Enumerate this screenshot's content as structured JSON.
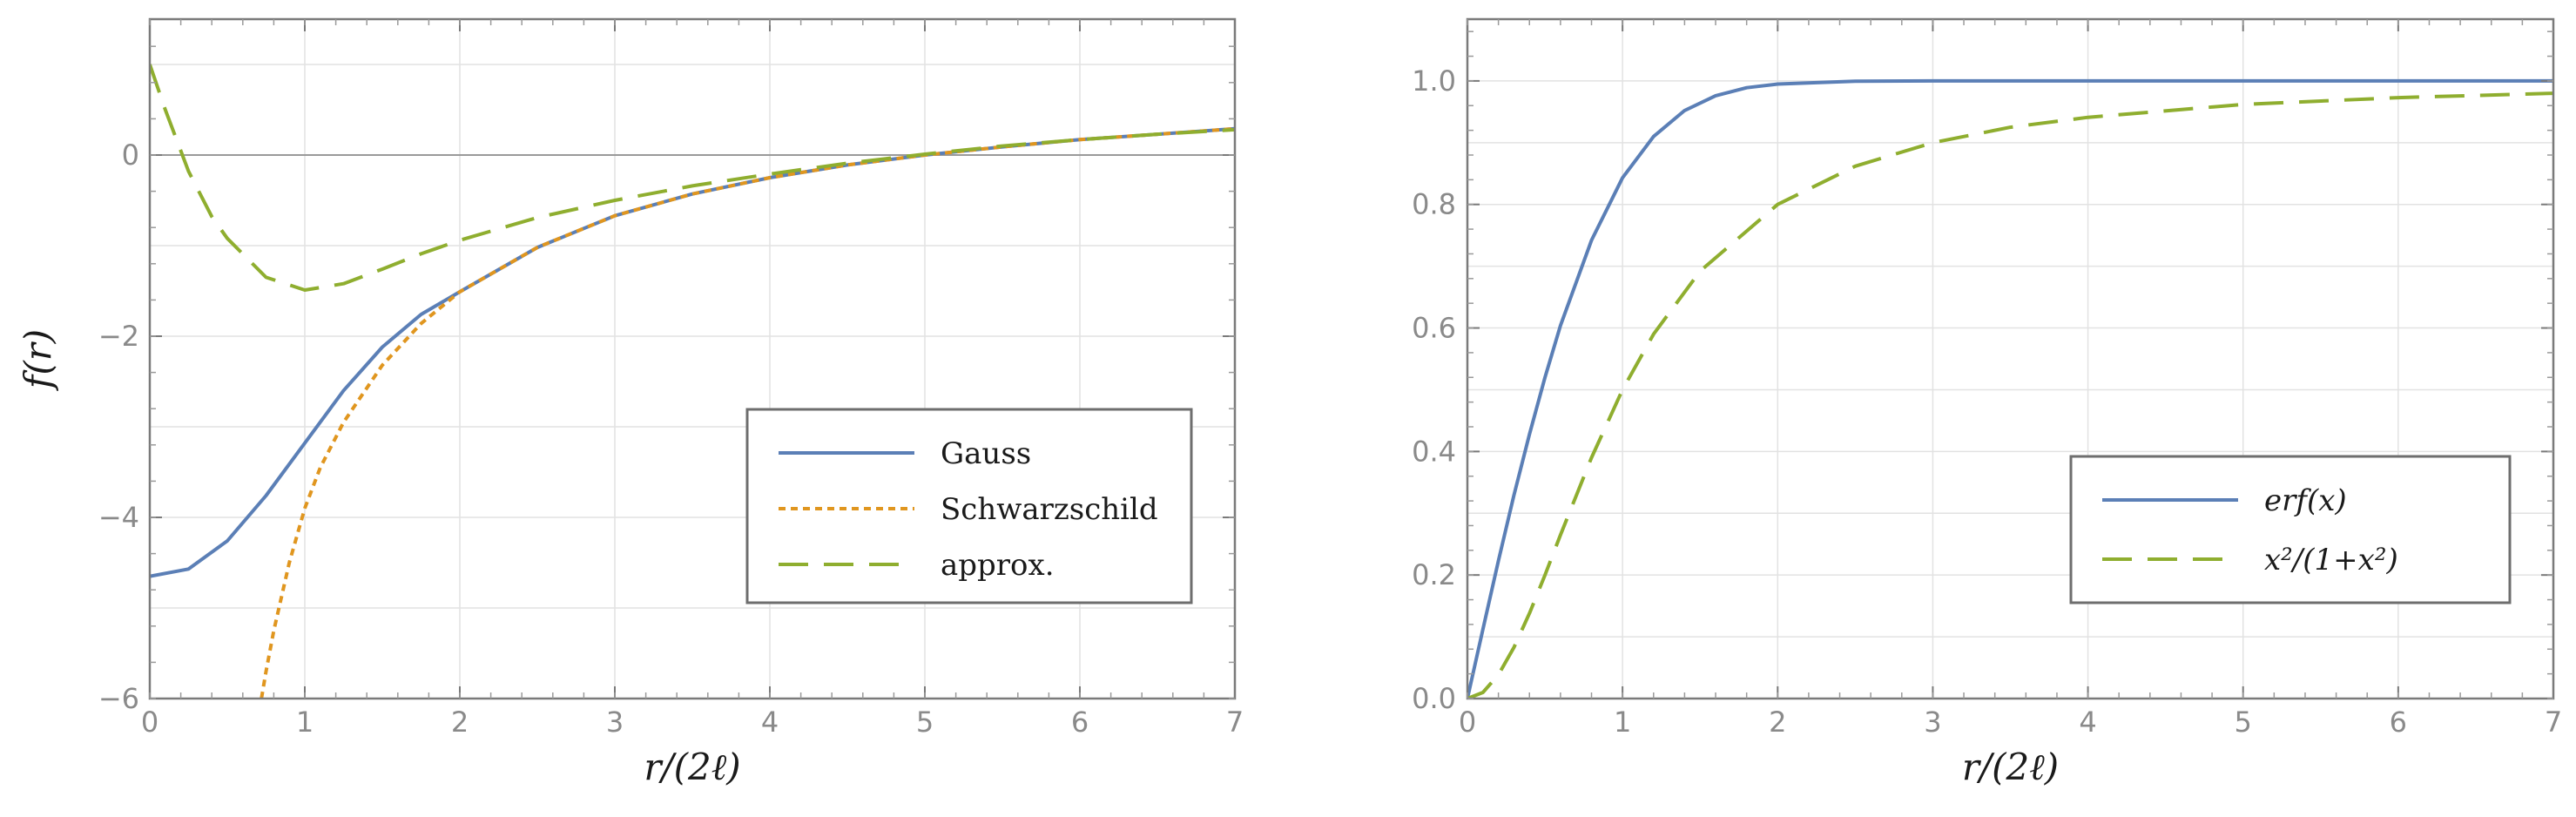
{
  "chart_data": [
    {
      "type": "line",
      "xlabel": "r/(2ℓ)",
      "ylabel": "f(r)",
      "xlim": [
        0,
        7
      ],
      "ylim": [
        -6,
        1.5
      ],
      "xticks": [
        0,
        1,
        2,
        3,
        4,
        5,
        6,
        7
      ],
      "xtick_labels": [
        "0",
        "1",
        "2",
        "3",
        "4",
        "5",
        "6",
        "7"
      ],
      "yticks": [
        -6,
        -4,
        -2,
        0
      ],
      "ytick_labels": [
        "−6",
        "−4",
        "−2",
        "0"
      ],
      "grid": true,
      "zero_line": true,
      "legend_position": "bottom-right",
      "series": [
        {
          "name": "Gauss",
          "color": "#5b7fb6",
          "style": "solid",
          "x": [
            0,
            0.25,
            0.5,
            0.75,
            1,
            1.25,
            1.5,
            1.75,
            2,
            2.5,
            3,
            3.5,
            4,
            4.5,
            5,
            5.5,
            6,
            6.5,
            7
          ],
          "y": [
            -4.65,
            -4.57,
            -4.26,
            -3.76,
            -3.18,
            -2.6,
            -2.12,
            -1.76,
            -1.51,
            -1.02,
            -0.67,
            -0.43,
            -0.25,
            -0.11,
            0.0,
            0.09,
            0.17,
            0.23,
            0.29
          ]
        },
        {
          "name": "Schwarzschild",
          "color": "#e0961f",
          "style": "dotted",
          "x": [
            0.72,
            0.75,
            0.8,
            0.9,
            1,
            1.1,
            1.25,
            1.5,
            1.75,
            2,
            2.5,
            3,
            3.5,
            4,
            4.5,
            5,
            5.5,
            6,
            6.5,
            7
          ],
          "y": [
            -6.0,
            -5.7,
            -5.25,
            -4.5,
            -3.9,
            -3.45,
            -2.95,
            -2.32,
            -1.86,
            -1.51,
            -1.02,
            -0.67,
            -0.43,
            -0.25,
            -0.11,
            0.0,
            0.09,
            0.17,
            0.23,
            0.29
          ]
        },
        {
          "name": "approx.",
          "color": "#8fae2f",
          "style": "dashed",
          "x": [
            0,
            0.1,
            0.25,
            0.4,
            0.5,
            0.75,
            1,
            1.25,
            1.5,
            1.75,
            2,
            2.5,
            3,
            3.5,
            4,
            4.5,
            5,
            5.5,
            6,
            6.5,
            7
          ],
          "y": [
            1.0,
            0.5,
            -0.18,
            -0.68,
            -0.92,
            -1.35,
            -1.49,
            -1.42,
            -1.26,
            -1.09,
            -0.94,
            -0.69,
            -0.5,
            -0.34,
            -0.21,
            -0.09,
            0.01,
            0.1,
            0.17,
            0.23,
            0.28
          ]
        }
      ]
    },
    {
      "type": "line",
      "xlabel": "r/(2ℓ)",
      "ylabel": "",
      "xlim": [
        0,
        7
      ],
      "ylim": [
        0,
        1.1
      ],
      "xticks": [
        0,
        1,
        2,
        3,
        4,
        5,
        6,
        7
      ],
      "xtick_labels": [
        "0",
        "1",
        "2",
        "3",
        "4",
        "5",
        "6",
        "7"
      ],
      "yticks": [
        0,
        0.2,
        0.4,
        0.6,
        0.8,
        1.0
      ],
      "ytick_labels": [
        "0.0",
        "0.2",
        "0.4",
        "0.6",
        "0.8",
        "1.0"
      ],
      "grid": true,
      "legend_position": "bottom-right",
      "series": [
        {
          "name": "erf(x)",
          "color": "#5b7fb6",
          "style": "solid",
          "x": [
            0,
            0.1,
            0.2,
            0.3,
            0.4,
            0.5,
            0.6,
            0.8,
            1,
            1.2,
            1.4,
            1.6,
            1.8,
            2,
            2.5,
            3,
            4,
            5,
            6,
            7
          ],
          "y": [
            0,
            0.112,
            0.223,
            0.329,
            0.428,
            0.52,
            0.604,
            0.742,
            0.843,
            0.91,
            0.952,
            0.976,
            0.989,
            0.995,
            0.9996,
            1.0,
            1.0,
            1.0,
            1.0,
            1.0
          ]
        },
        {
          "name": "x²/(1+x²)",
          "color": "#8fae2f",
          "style": "dashed",
          "x": [
            0,
            0.1,
            0.2,
            0.3,
            0.4,
            0.5,
            0.6,
            0.8,
            1,
            1.2,
            1.5,
            2,
            2.5,
            3,
            3.5,
            4,
            5,
            6,
            7
          ],
          "y": [
            0,
            0.0099,
            0.0385,
            0.0826,
            0.138,
            0.2,
            0.265,
            0.39,
            0.5,
            0.59,
            0.692,
            0.8,
            0.862,
            0.9,
            0.925,
            0.941,
            0.962,
            0.973,
            0.98
          ]
        }
      ]
    }
  ]
}
